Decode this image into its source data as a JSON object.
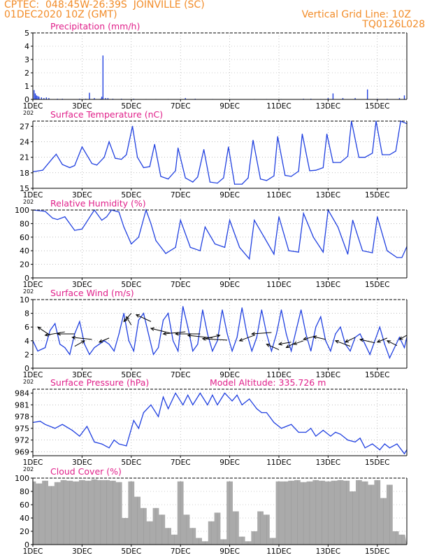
{
  "header": {
    "line1_left": "CPTEC:  048:45W-26:39S  JOINVILLE (SC)",
    "line2_left": "01DEC2020 10Z (GMT)",
    "line2_right": "Vertical Grid Line: 10Z",
    "line3_right": "TQ0126L028"
  },
  "colors": {
    "header": "#f28c28",
    "title": "#e0208a",
    "series": "#2040e0",
    "cloud": "#aaaaaa",
    "axis": "#000000",
    "grid": "#999999"
  },
  "x_axis": {
    "tick_labels": [
      "1DEC",
      "3DEC",
      "5DEC",
      "7DEC",
      "9DEC",
      "11DEC",
      "13DEC",
      "15DEC"
    ],
    "tick_days": [
      1,
      3,
      5,
      7,
      9,
      11,
      13,
      15
    ],
    "range_days": [
      1.0,
      16.2
    ],
    "stub_label": "202"
  },
  "chart_data": [
    {
      "type": "bar",
      "title": "Precipitation (mm/h)",
      "ylim": [
        0,
        5
      ],
      "yticks": [
        0,
        1,
        2,
        3,
        4,
        5
      ],
      "x": [
        1.05,
        1.1,
        1.15,
        1.2,
        1.25,
        1.35,
        1.45,
        1.55,
        1.65,
        2.0,
        2.2,
        2.9,
        3.15,
        3.3,
        3.5,
        3.75,
        3.8,
        3.85,
        3.95,
        4.05,
        4.25,
        4.6,
        5.1,
        5.6,
        6.0,
        6.5,
        7.2,
        7.6,
        8.3,
        9.0,
        10.0,
        10.5,
        11.1,
        12.0,
        12.3,
        12.7,
        13.0,
        13.2,
        13.6,
        14.1,
        14.6,
        15.0,
        15.4,
        15.9,
        16.1
      ],
      "values": [
        0.7,
        0.45,
        0.3,
        0.25,
        0.2,
        0.15,
        0.1,
        0.15,
        0.1,
        0.05,
        0.05,
        0.05,
        0.05,
        0.5,
        0.1,
        0.05,
        0.2,
        3.3,
        0.1,
        0.1,
        0.05,
        0.05,
        0.05,
        0.03,
        0.03,
        0.03,
        0.1,
        0.05,
        0.03,
        0.03,
        0.03,
        0.03,
        0.03,
        0.05,
        0.05,
        0.03,
        0.1,
        0.45,
        0.1,
        0.1,
        0.75,
        0.05,
        0.05,
        0.1,
        0.3
      ]
    },
    {
      "type": "line",
      "title": "Surface Temperature (nC)",
      "ylim": [
        15,
        28
      ],
      "yticks": [
        15,
        18,
        21,
        24,
        27
      ],
      "x": [
        1.0,
        1.4,
        1.8,
        1.95,
        2.2,
        2.5,
        2.7,
        3.0,
        3.4,
        3.6,
        3.9,
        4.1,
        4.35,
        4.6,
        4.8,
        5.05,
        5.25,
        5.5,
        5.75,
        5.95,
        6.2,
        6.5,
        6.8,
        6.9,
        7.2,
        7.5,
        7.7,
        7.95,
        8.2,
        8.5,
        8.75,
        8.95,
        9.2,
        9.5,
        9.75,
        9.95,
        10.25,
        10.5,
        10.8,
        10.95,
        11.25,
        11.5,
        11.8,
        11.95,
        12.25,
        12.5,
        12.8,
        12.95,
        13.2,
        13.5,
        13.8,
        13.95,
        14.25,
        14.5,
        14.8,
        14.95,
        15.2,
        15.5,
        15.75,
        15.95,
        16.2
      ],
      "values": [
        18.2,
        18.5,
        20.8,
        21.6,
        19.6,
        19.0,
        19.4,
        23.0,
        19.8,
        19.5,
        21.0,
        24.0,
        20.8,
        20.6,
        21.5,
        27.0,
        21.0,
        19.0,
        19.2,
        23.5,
        17.3,
        16.8,
        18.4,
        22.8,
        17.0,
        16.2,
        17.2,
        22.5,
        16.2,
        16.0,
        17.0,
        23.0,
        15.8,
        15.8,
        17.0,
        24.3,
        16.8,
        16.5,
        17.4,
        25.0,
        17.5,
        17.3,
        18.3,
        25.5,
        18.4,
        18.5,
        19.0,
        25.5,
        20.0,
        20.0,
        21.2,
        28.0,
        21.0,
        21.0,
        21.8,
        28.0,
        21.5,
        21.5,
        22.2,
        28.0,
        27.5
      ]
    },
    {
      "type": "line",
      "title": "Relative Humidity (%)",
      "ylim": [
        0,
        100
      ],
      "yticks": [
        0,
        20,
        40,
        60,
        80,
        100
      ],
      "x": [
        1.0,
        1.5,
        1.8,
        2.0,
        2.3,
        2.7,
        3.0,
        3.5,
        3.8,
        4.0,
        4.2,
        4.5,
        4.7,
        5.0,
        5.3,
        5.6,
        5.8,
        6.0,
        6.4,
        6.8,
        7.0,
        7.4,
        7.8,
        8.0,
        8.4,
        8.8,
        9.0,
        9.4,
        9.8,
        10.0,
        10.4,
        10.8,
        11.0,
        11.4,
        11.8,
        12.0,
        12.4,
        12.8,
        13.0,
        13.4,
        13.8,
        14.0,
        14.4,
        14.8,
        15.0,
        15.4,
        15.8,
        16.0,
        16.2
      ],
      "values": [
        100,
        98,
        88,
        86,
        90,
        70,
        72,
        100,
        85,
        90,
        100,
        97,
        75,
        50,
        60,
        100,
        80,
        55,
        36,
        45,
        85,
        45,
        40,
        75,
        50,
        45,
        85,
        45,
        28,
        85,
        60,
        35,
        90,
        40,
        38,
        95,
        60,
        38,
        100,
        75,
        35,
        85,
        40,
        37,
        90,
        40,
        30,
        30,
        46
      ]
    },
    {
      "type": "line",
      "title": "Surface Wind (m/s)",
      "ylim": [
        0,
        10
      ],
      "yticks": [
        0,
        2,
        4,
        6,
        8,
        10
      ],
      "x": [
        1.0,
        1.2,
        1.5,
        1.7,
        1.9,
        2.1,
        2.3,
        2.5,
        2.7,
        2.9,
        3.1,
        3.3,
        3.5,
        3.7,
        3.9,
        4.1,
        4.3,
        4.5,
        4.7,
        4.9,
        5.1,
        5.3,
        5.5,
        5.7,
        5.9,
        6.1,
        6.3,
        6.5,
        6.7,
        6.9,
        7.1,
        7.3,
        7.5,
        7.7,
        7.9,
        8.1,
        8.3,
        8.5,
        8.7,
        8.9,
        9.1,
        9.3,
        9.5,
        9.7,
        9.9,
        10.1,
        10.3,
        10.5,
        10.7,
        10.9,
        11.1,
        11.3,
        11.5,
        11.7,
        11.9,
        12.1,
        12.3,
        12.5,
        12.7,
        12.9,
        13.1,
        13.3,
        13.5,
        13.7,
        13.9,
        14.1,
        14.3,
        14.5,
        14.7,
        14.9,
        15.1,
        15.3,
        15.5,
        15.7,
        15.9,
        16.1,
        16.2
      ],
      "values": [
        4.0,
        2.5,
        3.0,
        5.5,
        6.5,
        3.5,
        3.0,
        2.0,
        5.0,
        6.8,
        3.5,
        2.0,
        3.0,
        3.5,
        4.0,
        3.5,
        2.5,
        5.0,
        8.0,
        4.0,
        2.5,
        7.0,
        8.0,
        5.0,
        2.0,
        3.0,
        7.0,
        8.0,
        4.0,
        2.5,
        9.0,
        6.0,
        2.5,
        3.5,
        8.5,
        5.0,
        2.5,
        4.0,
        8.5,
        5.0,
        2.5,
        4.5,
        8.8,
        5.0,
        2.5,
        4.5,
        8.5,
        5.0,
        2.5,
        5.0,
        8.5,
        5.0,
        2.5,
        5.5,
        8.5,
        5.0,
        2.5,
        6.0,
        7.5,
        4.0,
        2.5,
        5.0,
        6.0,
        3.5,
        2.5,
        4.5,
        5.0,
        3.5,
        2.0,
        4.0,
        6.0,
        3.5,
        1.5,
        3.0,
        4.5,
        3.0,
        4.5
      ],
      "arrows": [
        {
          "x": 1.2,
          "y": 6,
          "dx": 0.5,
          "dy": -1.2
        },
        {
          "x": 1.5,
          "y": 4.8,
          "dx": 0.8,
          "dy": 0.5
        },
        {
          "x": 2.0,
          "y": 5.0,
          "dx": 0.7,
          "dy": 0.0
        },
        {
          "x": 2.6,
          "y": 4.5,
          "dx": 0.8,
          "dy": -0.3
        },
        {
          "x": 3.1,
          "y": 4.0,
          "dx": -0.4,
          "dy": -0.8
        },
        {
          "x": 3.7,
          "y": 3.8,
          "dx": 0.4,
          "dy": 0.6
        },
        {
          "x": 4.7,
          "y": 6.8,
          "dx": 0.3,
          "dy": 1.2
        },
        {
          "x": 4.8,
          "y": 7.5,
          "dx": 0.2,
          "dy": -1.2
        },
        {
          "x": 5.2,
          "y": 7.8,
          "dx": 0.6,
          "dy": -1.0
        },
        {
          "x": 5.8,
          "y": 5.8,
          "dx": 0.8,
          "dy": -0.7
        },
        {
          "x": 6.3,
          "y": 5.0,
          "dx": 0.9,
          "dy": 0.3
        },
        {
          "x": 6.8,
          "y": 5.0,
          "dx": 1.0,
          "dy": 0.0
        },
        {
          "x": 7.3,
          "y": 4.8,
          "dx": 1.0,
          "dy": -0.4
        },
        {
          "x": 7.9,
          "y": 4.3,
          "dx": 1.0,
          "dy": -0.2
        },
        {
          "x": 8.6,
          "y": 4.8,
          "dx": -0.6,
          "dy": -0.5
        },
        {
          "x": 9.4,
          "y": 4.0,
          "dx": 0.6,
          "dy": 0.8
        },
        {
          "x": 9.9,
          "y": 5.0,
          "dx": 0.8,
          "dy": 0.2
        },
        {
          "x": 10.5,
          "y": 3.5,
          "dx": 0.5,
          "dy": -0.8
        },
        {
          "x": 11.0,
          "y": 3.5,
          "dx": 0.5,
          "dy": 0.3
        },
        {
          "x": 11.3,
          "y": 3.0,
          "dx": 0.3,
          "dy": 0.6
        },
        {
          "x": 11.6,
          "y": 3.5,
          "dx": 0.4,
          "dy": 0.5
        },
        {
          "x": 12.0,
          "y": 4.2,
          "dx": 0.5,
          "dy": 0.5
        },
        {
          "x": 12.4,
          "y": 4.6,
          "dx": 0.5,
          "dy": -0.4
        },
        {
          "x": 13.3,
          "y": 4.0,
          "dx": 0.6,
          "dy": -0.8
        },
        {
          "x": 13.7,
          "y": 3.8,
          "dx": 0.4,
          "dy": 0.7
        },
        {
          "x": 14.3,
          "y": 4.2,
          "dx": 0.6,
          "dy": -0.5
        },
        {
          "x": 15.0,
          "y": 3.8,
          "dx": 0.4,
          "dy": 0.6
        },
        {
          "x": 15.4,
          "y": 4.0,
          "dx": 0.4,
          "dy": -0.7
        },
        {
          "x": 15.9,
          "y": 4.2,
          "dx": 0.3,
          "dy": 0.6
        }
      ]
    },
    {
      "type": "line",
      "title": "Surface Pressure (hPa)",
      "ylim": [
        968,
        985
      ],
      "yticks": [
        969,
        972,
        975,
        978,
        981,
        984
      ],
      "x": [
        1.0,
        1.3,
        1.5,
        1.9,
        2.2,
        2.6,
        2.9,
        3.2,
        3.5,
        3.8,
        4.1,
        4.3,
        4.5,
        4.8,
        5.1,
        5.3,
        5.5,
        5.8,
        6.1,
        6.3,
        6.5,
        6.8,
        7.1,
        7.3,
        7.5,
        7.8,
        8.1,
        8.3,
        8.5,
        8.8,
        9.1,
        9.3,
        9.5,
        9.8,
        10.1,
        10.3,
        10.5,
        10.8,
        11.1,
        11.3,
        11.5,
        11.8,
        12.1,
        12.3,
        12.5,
        12.8,
        13.1,
        13.3,
        13.5,
        13.8,
        14.1,
        14.3,
        14.5,
        14.8,
        15.1,
        15.3,
        15.5,
        15.8,
        16.1,
        16.2
      ],
      "values": [
        976.5,
        976.8,
        976.0,
        975.0,
        976.0,
        974.5,
        973.0,
        975.5,
        971.5,
        971.0,
        970.0,
        972.0,
        971.0,
        970.5,
        977.0,
        975.0,
        979.0,
        981.0,
        978.0,
        983.0,
        980.0,
        984.0,
        981.0,
        983.5,
        981.0,
        984.0,
        981.0,
        983.5,
        981.0,
        984.0,
        982.0,
        983.5,
        981.0,
        982.5,
        980.0,
        979.0,
        979.0,
        976.5,
        975.0,
        975.5,
        976.0,
        974.0,
        974.0,
        975.0,
        973.0,
        974.5,
        973.0,
        974.0,
        973.5,
        972.0,
        971.5,
        972.5,
        970.0,
        971.0,
        969.5,
        971.0,
        970.0,
        971.0,
        968.5,
        969.5
      ]
    },
    {
      "type": "bar",
      "title": "Cloud Cover (%)",
      "ylim": [
        0,
        100
      ],
      "yticks": [
        0,
        20,
        40,
        60,
        80,
        100
      ],
      "x": [
        1.0,
        1.25,
        1.5,
        1.75,
        2.0,
        2.25,
        2.5,
        2.75,
        3.0,
        3.25,
        3.5,
        3.75,
        4.0,
        4.25,
        4.5,
        4.75,
        5.0,
        5.25,
        5.5,
        5.75,
        6.0,
        6.25,
        6.5,
        6.75,
        7.0,
        7.25,
        7.5,
        7.75,
        8.0,
        8.25,
        8.5,
        8.75,
        9.0,
        9.25,
        9.5,
        9.75,
        10.0,
        10.25,
        10.5,
        10.75,
        11.0,
        11.25,
        11.5,
        11.75,
        12.0,
        12.25,
        12.5,
        12.75,
        13.0,
        13.25,
        13.5,
        13.75,
        14.0,
        14.25,
        14.5,
        14.75,
        15.0,
        15.25,
        15.5,
        15.75,
        16.0
      ],
      "values": [
        95,
        92,
        96,
        88,
        94,
        97,
        96,
        95,
        97,
        96,
        98,
        97,
        97,
        96,
        94,
        40,
        95,
        72,
        55,
        35,
        55,
        45,
        25,
        15,
        95,
        45,
        25,
        10,
        5,
        35,
        48,
        8,
        95,
        50,
        12,
        5,
        20,
        50,
        45,
        10,
        95,
        95,
        96,
        97,
        94,
        95,
        97,
        96,
        95,
        96,
        97,
        96,
        80,
        97,
        95,
        90,
        97,
        70,
        90,
        20,
        15
      ]
    }
  ],
  "extra_labels": {
    "model_altitude": "Model Altitude: 335.726 m"
  }
}
